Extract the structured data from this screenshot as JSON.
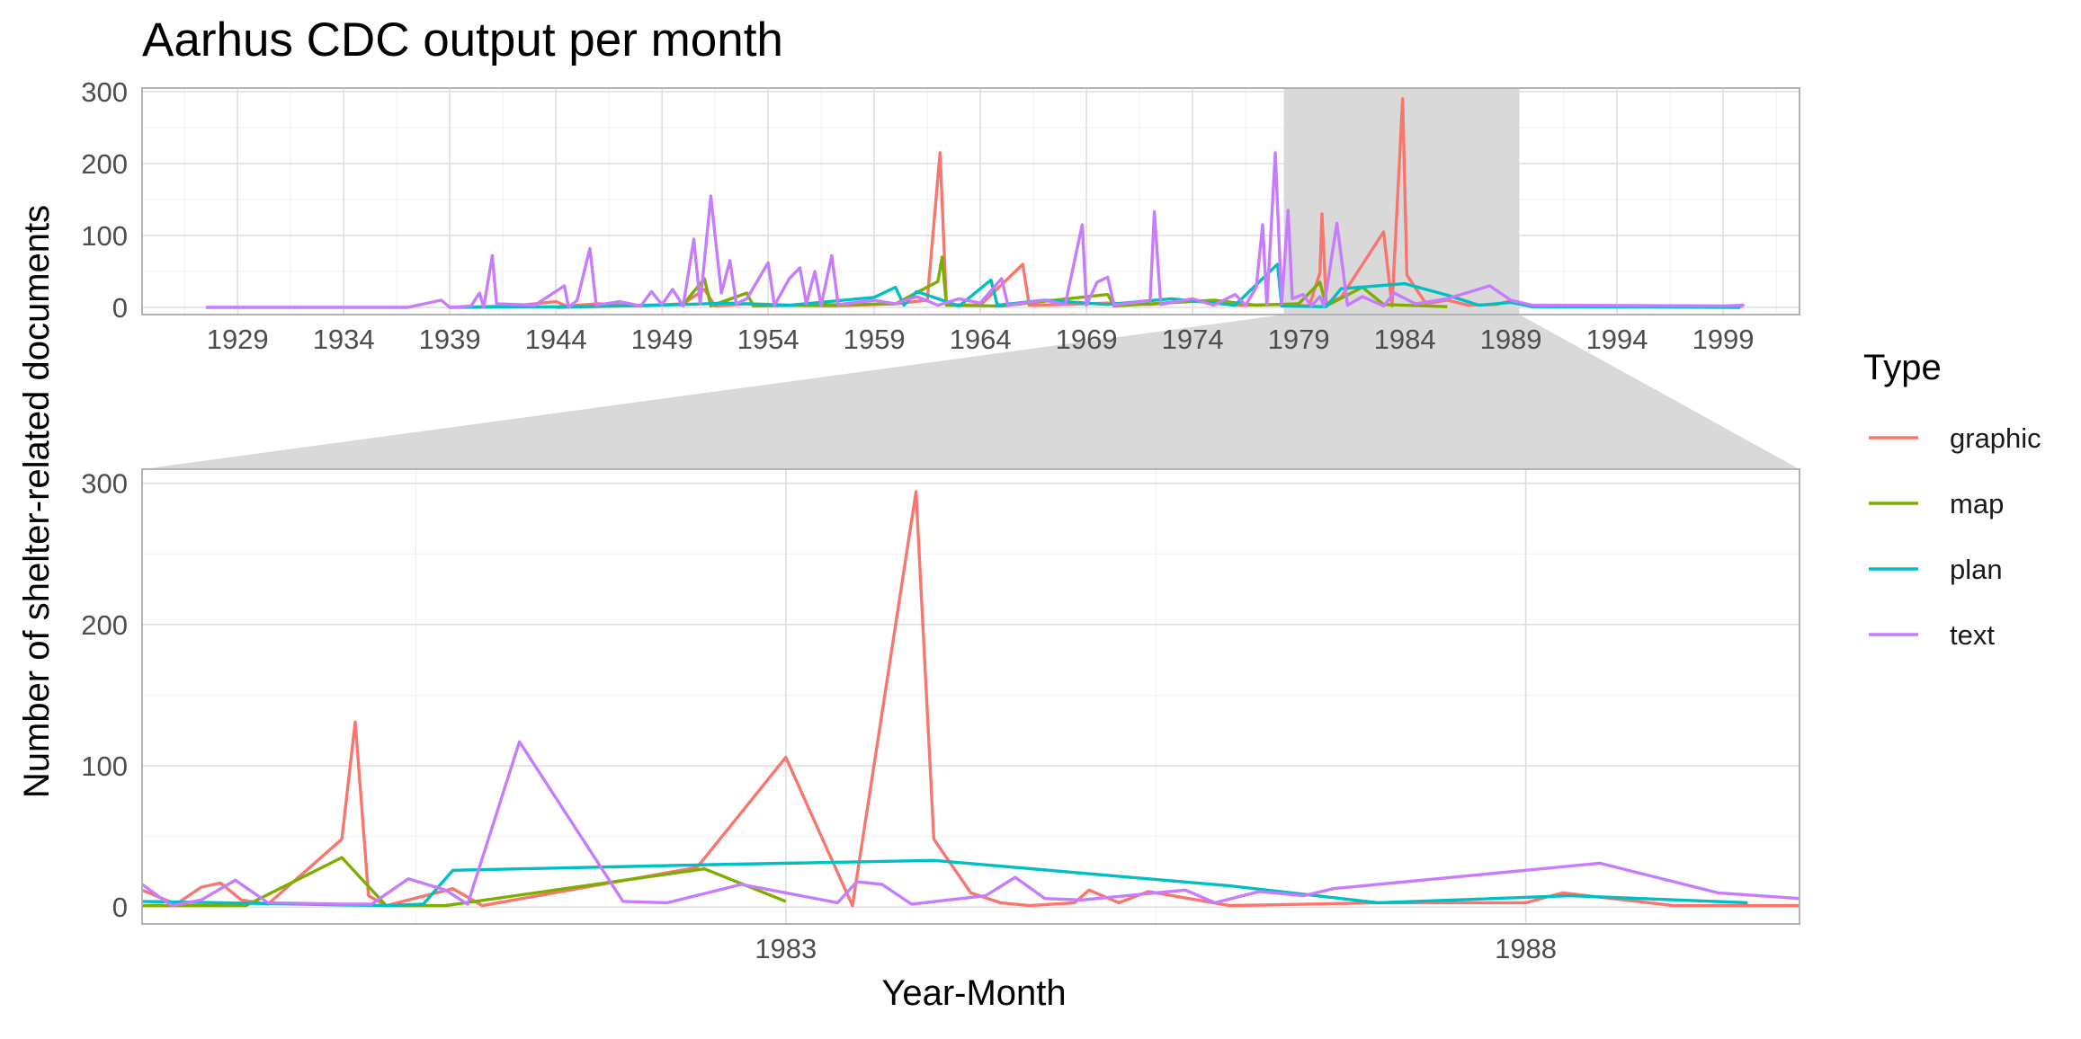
{
  "chart_data": {
    "type": "line",
    "title": "Aarhus CDC output per month",
    "xlabel": "Year-Month",
    "ylabel": "Number of shelter-related documents",
    "legend": {
      "title": "Type",
      "placement": "right"
    },
    "grid": true,
    "overview": {
      "xlim": [
        1924.5,
        2002.6
      ],
      "ylim": [
        -10,
        305
      ],
      "x_ticks": [
        1929,
        1934,
        1939,
        1944,
        1949,
        1954,
        1959,
        1964,
        1969,
        1974,
        1979,
        1984,
        1989,
        1994,
        1999
      ],
      "y_ticks": [
        0,
        100,
        200,
        300
      ],
      "zoom_range": [
        1978.3,
        1989.4
      ]
    },
    "detail": {
      "xlim": [
        1978.65,
        1989.85
      ],
      "ylim": [
        -12,
        310
      ],
      "x_ticks": [
        1983,
        1988
      ],
      "y_ticks": [
        0,
        100,
        200,
        300
      ]
    },
    "series": [
      {
        "name": "graphic",
        "color": "#F8766D",
        "overview_points": [
          [
            1939.0,
            0
          ],
          [
            1942.0,
            2
          ],
          [
            1944.0,
            8
          ],
          [
            1944.5,
            2
          ],
          [
            1946.0,
            5
          ],
          [
            1948.0,
            2
          ],
          [
            1950.0,
            5
          ],
          [
            1951.0,
            25
          ],
          [
            1951.5,
            2
          ],
          [
            1953.0,
            5
          ],
          [
            1955.0,
            3
          ],
          [
            1957.0,
            2
          ],
          [
            1960.0,
            5
          ],
          [
            1961.5,
            10
          ],
          [
            1962.1,
            215
          ],
          [
            1962.4,
            4
          ],
          [
            1964.0,
            3
          ],
          [
            1966.0,
            60
          ],
          [
            1966.3,
            3
          ],
          [
            1968.0,
            4
          ],
          [
            1970.0,
            6
          ],
          [
            1972.0,
            4
          ],
          [
            1974.0,
            10
          ],
          [
            1976.0,
            3
          ],
          [
            1978.0,
            4
          ],
          [
            1979.5,
            2
          ],
          [
            1980.0,
            48
          ],
          [
            1980.1,
            130
          ],
          [
            1980.3,
            5
          ],
          [
            1981.0,
            14
          ],
          [
            1983.0,
            105
          ],
          [
            1983.4,
            2
          ],
          [
            1983.9,
            290
          ],
          [
            1984.1,
            45
          ],
          [
            1985.0,
            5
          ],
          [
            1986.0,
            10
          ],
          [
            1987.0,
            3
          ],
          [
            1988.3,
            4
          ],
          [
            1989.0,
            9
          ],
          [
            1990.0,
            2
          ],
          [
            1999.9,
            1
          ]
        ],
        "detail_points": [
          [
            1978.65,
            12
          ],
          [
            1978.88,
            2
          ],
          [
            1979.05,
            14
          ],
          [
            1979.18,
            17
          ],
          [
            1979.32,
            5
          ],
          [
            1979.5,
            2
          ],
          [
            1980.0,
            48
          ],
          [
            1980.09,
            131
          ],
          [
            1980.18,
            8
          ],
          [
            1980.3,
            1
          ],
          [
            1980.75,
            13
          ],
          [
            1980.95,
            1
          ],
          [
            1982.4,
            28
          ],
          [
            1983.0,
            106
          ],
          [
            1983.45,
            1
          ],
          [
            1983.88,
            294
          ],
          [
            1984.0,
            48
          ],
          [
            1984.25,
            10
          ],
          [
            1984.45,
            3
          ],
          [
            1984.65,
            1
          ],
          [
            1984.95,
            3
          ],
          [
            1985.05,
            12
          ],
          [
            1985.25,
            3
          ],
          [
            1985.45,
            11
          ],
          [
            1986.0,
            1
          ],
          [
            1987.0,
            3
          ],
          [
            1988.0,
            3
          ],
          [
            1988.25,
            10
          ],
          [
            1989.0,
            1
          ],
          [
            1989.85,
            1
          ]
        ]
      },
      {
        "name": "map",
        "color": "#7CAE00",
        "overview_points": [
          [
            1944.0,
            0
          ],
          [
            1950.0,
            4
          ],
          [
            1951.0,
            40
          ],
          [
            1951.3,
            2
          ],
          [
            1953.0,
            20
          ],
          [
            1953.3,
            2
          ],
          [
            1960.0,
            5
          ],
          [
            1962.0,
            36
          ],
          [
            1962.2,
            70
          ],
          [
            1962.4,
            3
          ],
          [
            1965.0,
            2
          ],
          [
            1970.0,
            18
          ],
          [
            1970.3,
            2
          ],
          [
            1975.0,
            10
          ],
          [
            1977.0,
            3
          ],
          [
            1979.0,
            5
          ],
          [
            1980.0,
            35
          ],
          [
            1980.3,
            2
          ],
          [
            1982.0,
            28
          ],
          [
            1983.0,
            4
          ],
          [
            1986.0,
            1
          ]
        ],
        "detail_points": [
          [
            1978.65,
            1
          ],
          [
            1979.0,
            1
          ],
          [
            1979.35,
            1
          ],
          [
            1980.0,
            35
          ],
          [
            1980.3,
            1
          ],
          [
            1980.7,
            1
          ],
          [
            1982.45,
            27
          ],
          [
            1983.0,
            4
          ]
        ]
      },
      {
        "name": "plan",
        "color": "#00BFC4",
        "overview_points": [
          [
            1939.0,
            0
          ],
          [
            1945.0,
            1
          ],
          [
            1950.0,
            4
          ],
          [
            1952.0,
            6
          ],
          [
            1955.0,
            3
          ],
          [
            1959.0,
            14
          ],
          [
            1960.0,
            28
          ],
          [
            1960.4,
            3
          ],
          [
            1961.0,
            22
          ],
          [
            1963.0,
            2
          ],
          [
            1964.5,
            38
          ],
          [
            1964.8,
            3
          ],
          [
            1967.0,
            10
          ],
          [
            1970.0,
            4
          ],
          [
            1973.0,
            12
          ],
          [
            1976.0,
            3
          ],
          [
            1978.0,
            60
          ],
          [
            1978.2,
            2
          ],
          [
            1980.3,
            1
          ],
          [
            1981.0,
            26
          ],
          [
            1984.0,
            33
          ],
          [
            1986.0,
            17
          ],
          [
            1987.5,
            3
          ],
          [
            1989.0,
            7
          ],
          [
            1990.0,
            1
          ],
          [
            1999.8,
            0
          ]
        ],
        "detail_points": [
          [
            1978.65,
            4
          ],
          [
            1980.3,
            1
          ],
          [
            1980.55,
            2
          ],
          [
            1980.75,
            26
          ],
          [
            1982.5,
            30
          ],
          [
            1984.0,
            33
          ],
          [
            1985.0,
            24
          ],
          [
            1986.0,
            15
          ],
          [
            1987.0,
            3
          ],
          [
            1988.3,
            8
          ],
          [
            1989.5,
            3
          ]
        ]
      },
      {
        "name": "text",
        "color": "#C77CFF",
        "overview_points": [
          [
            1927.5,
            0
          ],
          [
            1937.0,
            0
          ],
          [
            1938.6,
            10
          ],
          [
            1939.0,
            0
          ],
          [
            1940.0,
            2
          ],
          [
            1940.4,
            20
          ],
          [
            1940.6,
            0
          ],
          [
            1941.0,
            72
          ],
          [
            1941.2,
            5
          ],
          [
            1943.0,
            3
          ],
          [
            1944.4,
            30
          ],
          [
            1944.6,
            0
          ],
          [
            1945.0,
            10
          ],
          [
            1945.6,
            82
          ],
          [
            1945.9,
            3
          ],
          [
            1947.0,
            8
          ],
          [
            1948.0,
            2
          ],
          [
            1948.5,
            22
          ],
          [
            1949.0,
            4
          ],
          [
            1949.5,
            25
          ],
          [
            1950.0,
            2
          ],
          [
            1950.5,
            95
          ],
          [
            1950.8,
            5
          ],
          [
            1951.3,
            155
          ],
          [
            1951.5,
            100
          ],
          [
            1951.8,
            20
          ],
          [
            1952.2,
            65
          ],
          [
            1952.5,
            5
          ],
          [
            1953.0,
            12
          ],
          [
            1954.0,
            62
          ],
          [
            1954.3,
            3
          ],
          [
            1955.0,
            40
          ],
          [
            1955.5,
            55
          ],
          [
            1955.8,
            5
          ],
          [
            1956.2,
            50
          ],
          [
            1956.5,
            3
          ],
          [
            1957.0,
            72
          ],
          [
            1957.3,
            4
          ],
          [
            1959.0,
            10
          ],
          [
            1960.0,
            5
          ],
          [
            1961.0,
            15
          ],
          [
            1962.0,
            3
          ],
          [
            1963.0,
            12
          ],
          [
            1964.0,
            6
          ],
          [
            1965.0,
            40
          ],
          [
            1965.3,
            3
          ],
          [
            1967.0,
            10
          ],
          [
            1968.0,
            4
          ],
          [
            1968.8,
            115
          ],
          [
            1969.0,
            3
          ],
          [
            1969.5,
            35
          ],
          [
            1970.0,
            42
          ],
          [
            1970.3,
            3
          ],
          [
            1972.0,
            10
          ],
          [
            1972.2,
            133
          ],
          [
            1972.5,
            4
          ],
          [
            1974.0,
            12
          ],
          [
            1975.0,
            3
          ],
          [
            1976.0,
            18
          ],
          [
            1976.5,
            3
          ],
          [
            1977.0,
            28
          ],
          [
            1977.3,
            115
          ],
          [
            1977.5,
            3
          ],
          [
            1977.9,
            215
          ],
          [
            1978.2,
            5
          ],
          [
            1978.5,
            135
          ],
          [
            1978.7,
            12
          ],
          [
            1979.2,
            18
          ],
          [
            1979.6,
            2
          ],
          [
            1980.0,
            15
          ],
          [
            1980.2,
            2
          ],
          [
            1980.8,
            117
          ],
          [
            1981.3,
            3
          ],
          [
            1982.0,
            15
          ],
          [
            1983.0,
            2
          ],
          [
            1983.5,
            20
          ],
          [
            1984.5,
            5
          ],
          [
            1986.0,
            12
          ],
          [
            1988.0,
            30
          ],
          [
            1989.0,
            10
          ],
          [
            1990.0,
            3
          ],
          [
            1999.0,
            2
          ],
          [
            2000.0,
            3
          ]
        ],
        "detail_points": [
          [
            1978.65,
            16
          ],
          [
            1978.85,
            1
          ],
          [
            1979.05,
            5
          ],
          [
            1979.28,
            19
          ],
          [
            1979.5,
            3
          ],
          [
            1980.0,
            2
          ],
          [
            1980.2,
            2
          ],
          [
            1980.45,
            20
          ],
          [
            1980.7,
            12
          ],
          [
            1980.85,
            2
          ],
          [
            1981.2,
            117
          ],
          [
            1981.9,
            4
          ],
          [
            1982.2,
            3
          ],
          [
            1982.7,
            16
          ],
          [
            1983.35,
            3
          ],
          [
            1983.48,
            18
          ],
          [
            1983.65,
            16
          ],
          [
            1983.85,
            2
          ],
          [
            1984.35,
            8
          ],
          [
            1984.55,
            21
          ],
          [
            1984.75,
            6
          ],
          [
            1985.0,
            5
          ],
          [
            1985.7,
            12
          ],
          [
            1985.9,
            3
          ],
          [
            1986.2,
            11
          ],
          [
            1986.5,
            8
          ],
          [
            1986.7,
            13
          ],
          [
            1988.5,
            31
          ],
          [
            1989.3,
            10
          ],
          [
            1989.85,
            6
          ]
        ]
      }
    ]
  }
}
